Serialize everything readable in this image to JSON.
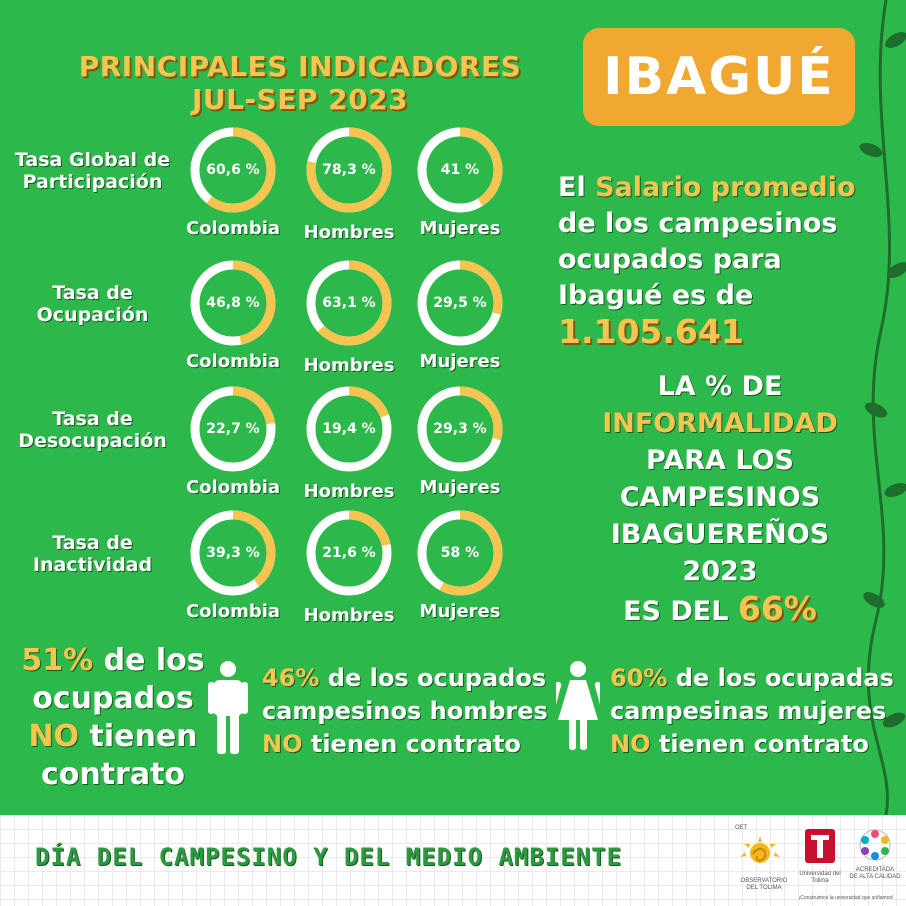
{
  "title": {
    "line1": "PRINCIPALES INDICADORES",
    "line2": "JUL-SEP  2023"
  },
  "city": "IBAGUÉ",
  "colors": {
    "green": "#2db84b",
    "gold": "#f5c451",
    "orange": "#f0a830",
    "ring": "#ffffff"
  },
  "rows": [
    {
      "label": "Tasa Global de Participación",
      "items": [
        {
          "label": "Colombia",
          "value": 60.6,
          "display": "60,6 %"
        },
        {
          "label": "Hombres",
          "value": 78.3,
          "display": "78,3 %"
        },
        {
          "label": "Mujeres",
          "value": 41,
          "display": "41 %"
        }
      ]
    },
    {
      "label": "Tasa de Ocupación",
      "items": [
        {
          "label": "Colombia",
          "value": 46.8,
          "display": "46,8 %"
        },
        {
          "label": "Hombres",
          "value": 63.1,
          "display": "63,1 %"
        },
        {
          "label": "Mujeres",
          "value": 29.5,
          "display": "29,5 %"
        }
      ]
    },
    {
      "label": "Tasa de Desocupación",
      "items": [
        {
          "label": "Colombia",
          "value": 22.7,
          "display": "22,7 %"
        },
        {
          "label": "Hombres",
          "value": 19.4,
          "display": "19,4 %"
        },
        {
          "label": "Mujeres",
          "value": 29.3,
          "display": "29,3 %"
        }
      ]
    },
    {
      "label": "Tasa de Inactividad",
      "items": [
        {
          "label": "Colombia",
          "value": 39.3,
          "display": "39,3 %"
        },
        {
          "label": "Hombres",
          "value": 21.6,
          "display": "21,6 %"
        },
        {
          "label": "Mujeres",
          "value": 58,
          "display": "58 %"
        }
      ]
    }
  ],
  "salary": {
    "p1": "El ",
    "highlight": "Salario promedio",
    "p2": " de los campesinos ocupados para Ibagué es de ",
    "amount": "1.105.641"
  },
  "informality": {
    "l1": "LA % DE",
    "highlight": "INFORMALIDAD",
    "l3": "PARA LOS",
    "l4": "CAMPESINOS",
    "l5": "IBAGUEREÑOS 2023",
    "l6": "ES DEL",
    "value": "66%"
  },
  "contracts": {
    "all": {
      "pct": "51%",
      "t1": " de los ocupados ",
      "no": "NO",
      "t2": " tienen contrato"
    },
    "men": {
      "pct": "46%",
      "t1": " de los ocupados campesinos hombres ",
      "no": "NO",
      "t2": " tienen contrato"
    },
    "women": {
      "pct": "60%",
      "t1": " de los ocupadas campesinas mujeres ",
      "no": "NO",
      "t2": " tienen contrato"
    }
  },
  "icons": {
    "man": "man-icon",
    "woman": "woman-icon"
  },
  "footer": {
    "title": "DÍA DEL CAMPESINO Y DEL MEDIO AMBIENTE",
    "logos": [
      {
        "name": "oet",
        "text": "OET",
        "sub": "OBSERVATORIO DEL TOLIMA"
      },
      {
        "name": "ut",
        "text": "Universidad del Tolima",
        "sub": "¡Construimos la universidad que soñamos!"
      },
      {
        "name": "acreditada",
        "text": "ACREDITADA",
        "sub": "DE ALTA CALIDAD"
      }
    ]
  }
}
